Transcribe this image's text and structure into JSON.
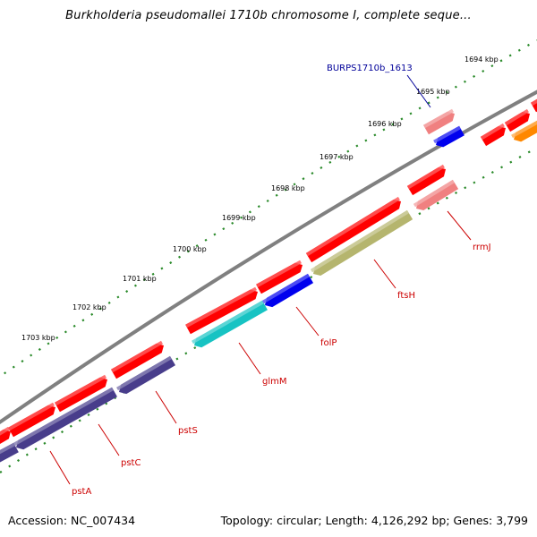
{
  "title": "Burkholderia pseudomallei 1710b chromosome I, complete seque...",
  "footer": {
    "accession": "Accession: NC_007434",
    "topology": "Topology: circular; Length: 4,126,292 bp; Genes: 3,799"
  },
  "ticks": [
    "1694 kbp",
    "1695 kbp",
    "1696 kbp",
    "1697 kbp",
    "1698 kbp",
    "1699 kbp",
    "1700 kbp",
    "1701 kbp",
    "1702 kbp",
    "1703 kbp"
  ],
  "highlight_label": "BURPS1710b_1613",
  "gene_labels": [
    "rrmJ",
    "ftsH",
    "folP",
    "glmM",
    "pstS",
    "pstC",
    "pstA"
  ],
  "colors": {
    "backbone": "#888888",
    "tick": "#1e7a1e",
    "red": "#ff0000",
    "pink": "#f08080",
    "blue": "#0000ee",
    "cyan": "#17c3c3",
    "olive": "#b5b56e",
    "purple": "#483d8b",
    "orange": "#ff8800",
    "label_red": "#cc0000",
    "label_blue": "#000099"
  }
}
